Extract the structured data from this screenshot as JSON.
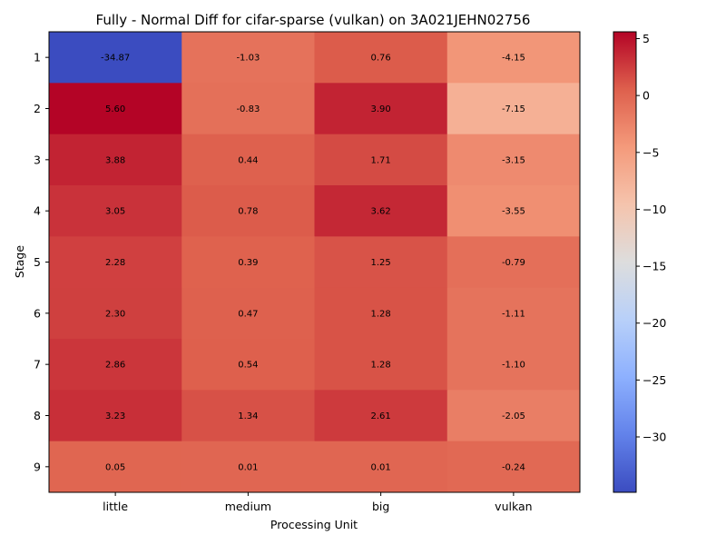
{
  "chart_data": {
    "type": "heatmap",
    "title": "Fully - Normal Diff for cifar-sparse (vulkan) on 3A021JEHN02756",
    "xlabel": "Processing Unit",
    "ylabel": "Stage",
    "columns": [
      "little",
      "medium",
      "big",
      "vulkan"
    ],
    "rows": [
      "1",
      "2",
      "3",
      "4",
      "5",
      "6",
      "7",
      "8",
      "9"
    ],
    "values": [
      [
        -34.87,
        -1.03,
        0.76,
        -4.15
      ],
      [
        5.6,
        -0.83,
        3.9,
        -7.15
      ],
      [
        3.88,
        0.44,
        1.71,
        -3.15
      ],
      [
        3.05,
        0.78,
        3.62,
        -3.55
      ],
      [
        2.28,
        0.39,
        1.25,
        -0.79
      ],
      [
        2.3,
        0.47,
        1.28,
        -1.11
      ],
      [
        2.86,
        0.54,
        1.28,
        -1.1
      ],
      [
        3.23,
        1.34,
        2.61,
        -2.05
      ],
      [
        0.05,
        0.01,
        0.01,
        -0.24
      ]
    ],
    "value_labels": [
      [
        "-34.87",
        "-1.03",
        "0.76",
        "-4.15"
      ],
      [
        "5.60",
        "-0.83",
        "3.90",
        "-7.15"
      ],
      [
        "3.88",
        "0.44",
        "1.71",
        "-3.15"
      ],
      [
        "3.05",
        "0.78",
        "3.62",
        "-3.55"
      ],
      [
        "2.28",
        "0.39",
        "1.25",
        "-0.79"
      ],
      [
        "2.30",
        "0.47",
        "1.28",
        "-1.11"
      ],
      [
        "2.86",
        "0.54",
        "1.28",
        "-1.10"
      ],
      [
        "3.23",
        "1.34",
        "2.61",
        "-2.05"
      ],
      [
        "0.05",
        "0.01",
        "0.01",
        "-0.24"
      ]
    ],
    "colormap": "coolwarm",
    "vmin": -34.87,
    "vmax": 5.6,
    "colorbar_ticks": [
      5,
      0,
      -5,
      -10,
      -15,
      -20,
      -25,
      -30
    ],
    "colorbar_tick_labels": [
      "5",
      "0",
      "−5",
      "−10",
      "−15",
      "−20",
      "−25",
      "−30"
    ],
    "grid": false
  }
}
